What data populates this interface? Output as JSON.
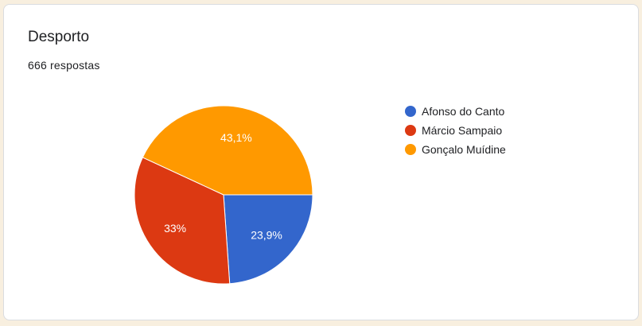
{
  "header": {
    "title": "Desporto",
    "responses": "666 respostas"
  },
  "chart_data": {
    "type": "pie",
    "start_angle": "3 o'clock, clockwise",
    "legend_placement": "right",
    "slices": [
      {
        "label": "Afonso do Canto",
        "value": 23.9,
        "data_label": "23,9%",
        "color": "#3366cc"
      },
      {
        "label": "Márcio Sampaio",
        "value": 33,
        "data_label": "33%",
        "color": "#dc3912"
      },
      {
        "label": "Gonçalo Muídine",
        "value": 43.1,
        "data_label": "43,1%",
        "color": "#ff9900"
      }
    ]
  }
}
